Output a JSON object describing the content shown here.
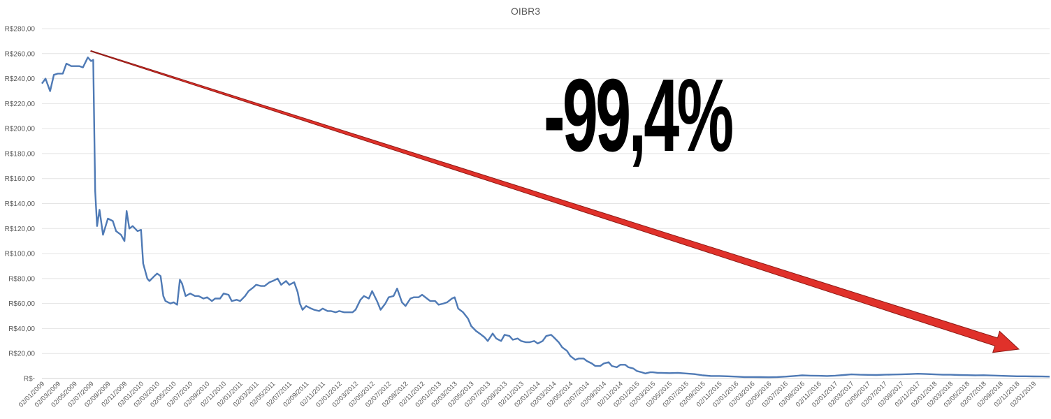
{
  "chart_data": {
    "type": "line",
    "title": "OIBR3",
    "annotation": "-99,4%",
    "xlabel": "",
    "ylabel": "",
    "ylim": [
      0,
      280
    ],
    "y_ticks": [
      {
        "value": 0,
        "label": "R$-"
      },
      {
        "value": 20,
        "label": "R$20,00"
      },
      {
        "value": 40,
        "label": "R$40,00"
      },
      {
        "value": 60,
        "label": "R$60,00"
      },
      {
        "value": 80,
        "label": "R$80,00"
      },
      {
        "value": 100,
        "label": "R$100,00"
      },
      {
        "value": 120,
        "label": "R$120,00"
      },
      {
        "value": 140,
        "label": "R$140,00"
      },
      {
        "value": 160,
        "label": "R$160,00"
      },
      {
        "value": 180,
        "label": "R$180,00"
      },
      {
        "value": 200,
        "label": "R$200,00"
      },
      {
        "value": 220,
        "label": "R$220,00"
      },
      {
        "value": 240,
        "label": "R$240,00"
      },
      {
        "value": 260,
        "label": "R$260,00"
      },
      {
        "value": 280,
        "label": "R$280,00"
      }
    ],
    "x_tick_labels": [
      "02/01/2009",
      "02/03/2009",
      "02/05/2009",
      "02/07/2009",
      "02/09/2009",
      "02/11/2009",
      "02/01/2010",
      "02/03/2010",
      "02/05/2010",
      "02/07/2010",
      "02/09/2010",
      "02/11/2010",
      "02/01/2011",
      "02/03/2011",
      "02/05/2011",
      "02/07/2011",
      "02/09/2011",
      "02/11/2011",
      "02/01/2012",
      "02/03/2012",
      "02/05/2012",
      "02/07/2012",
      "02/09/2012",
      "02/11/2012",
      "02/01/2013",
      "02/03/2013",
      "02/05/2013",
      "02/07/2013",
      "02/09/2013",
      "02/11/2013",
      "02/01/2014",
      "02/03/2014",
      "02/05/2014",
      "02/07/2014",
      "02/09/2014",
      "02/11/2014",
      "02/01/2015",
      "02/03/2015",
      "02/05/2015",
      "02/07/2015",
      "02/09/2015",
      "02/11/2015",
      "02/01/2016",
      "02/03/2016",
      "02/05/2016",
      "02/07/2016",
      "02/09/2016",
      "02/11/2016",
      "02/01/2017",
      "02/03/2017",
      "02/05/2017",
      "02/07/2017",
      "02/09/2017",
      "02/11/2017",
      "02/01/2018",
      "02/03/2018",
      "02/05/2018",
      "02/07/2018",
      "02/09/2018",
      "02/11/2018",
      "02/01/2019"
    ],
    "series": [
      {
        "color": "#4f7ab5",
        "points": [
          [
            "02/01/2009",
            236
          ],
          [
            "15/01/2009",
            240
          ],
          [
            "01/02/2009",
            230
          ],
          [
            "15/02/2009",
            243
          ],
          [
            "02/03/2009",
            244
          ],
          [
            "20/03/2009",
            244
          ],
          [
            "02/04/2009",
            252
          ],
          [
            "20/04/2009",
            250
          ],
          [
            "02/05/2009",
            250
          ],
          [
            "20/05/2009",
            250
          ],
          [
            "02/06/2009",
            249
          ],
          [
            "20/06/2009",
            257
          ],
          [
            "02/07/2009",
            254
          ],
          [
            "10/07/2009",
            255
          ],
          [
            "17/07/2009",
            150
          ],
          [
            "24/07/2009",
            122
          ],
          [
            "02/08/2009",
            135
          ],
          [
            "15/08/2009",
            115
          ],
          [
            "02/09/2009",
            128
          ],
          [
            "20/09/2009",
            126
          ],
          [
            "02/10/2009",
            118
          ],
          [
            "20/10/2009",
            115
          ],
          [
            "02/11/2009",
            110
          ],
          [
            "10/11/2009",
            134
          ],
          [
            "20/11/2009",
            120
          ],
          [
            "02/12/2009",
            122
          ],
          [
            "20/12/2009",
            118
          ],
          [
            "02/01/2010",
            119
          ],
          [
            "10/01/2010",
            92
          ],
          [
            "25/01/2010",
            80
          ],
          [
            "02/02/2010",
            78
          ],
          [
            "20/02/2010",
            82
          ],
          [
            "02/03/2010",
            84
          ],
          [
            "15/03/2010",
            82
          ],
          [
            "25/03/2010",
            66
          ],
          [
            "02/04/2010",
            62
          ],
          [
            "20/04/2010",
            60
          ],
          [
            "02/05/2010",
            61
          ],
          [
            "15/05/2010",
            59
          ],
          [
            "25/05/2010",
            79
          ],
          [
            "02/06/2010",
            76
          ],
          [
            "15/06/2010",
            66
          ],
          [
            "02/07/2010",
            68
          ],
          [
            "20/07/2010",
            66
          ],
          [
            "02/08/2010",
            66
          ],
          [
            "20/08/2010",
            64
          ],
          [
            "02/09/2010",
            65
          ],
          [
            "20/09/2010",
            62
          ],
          [
            "02/10/2010",
            64
          ],
          [
            "20/10/2010",
            64
          ],
          [
            "02/11/2010",
            68
          ],
          [
            "20/11/2010",
            67
          ],
          [
            "02/12/2010",
            62
          ],
          [
            "20/12/2010",
            63
          ],
          [
            "02/01/2011",
            62
          ],
          [
            "20/01/2011",
            66
          ],
          [
            "02/02/2011",
            70
          ],
          [
            "20/02/2011",
            73
          ],
          [
            "02/03/2011",
            75
          ],
          [
            "20/03/2011",
            74
          ],
          [
            "02/04/2011",
            74
          ],
          [
            "20/04/2011",
            77
          ],
          [
            "02/05/2011",
            78
          ],
          [
            "20/05/2011",
            80
          ],
          [
            "02/06/2011",
            75
          ],
          [
            "20/06/2011",
            78
          ],
          [
            "02/07/2011",
            75
          ],
          [
            "20/07/2011",
            77
          ],
          [
            "02/08/2011",
            69
          ],
          [
            "10/08/2011",
            60
          ],
          [
            "20/08/2011",
            55
          ],
          [
            "02/09/2011",
            58
          ],
          [
            "20/09/2011",
            56
          ],
          [
            "02/10/2011",
            55
          ],
          [
            "20/10/2011",
            54
          ],
          [
            "02/11/2011",
            56
          ],
          [
            "20/11/2011",
            54
          ],
          [
            "02/12/2011",
            54
          ],
          [
            "20/12/2011",
            53
          ],
          [
            "02/01/2012",
            54
          ],
          [
            "20/01/2012",
            53
          ],
          [
            "02/02/2012",
            53
          ],
          [
            "20/02/2012",
            53
          ],
          [
            "02/03/2012",
            55
          ],
          [
            "20/03/2012",
            63
          ],
          [
            "02/04/2012",
            66
          ],
          [
            "20/04/2012",
            64
          ],
          [
            "02/05/2012",
            70
          ],
          [
            "20/05/2012",
            62
          ],
          [
            "02/06/2012",
            55
          ],
          [
            "20/06/2012",
            60
          ],
          [
            "02/07/2012",
            65
          ],
          [
            "20/07/2012",
            66
          ],
          [
            "02/08/2012",
            72
          ],
          [
            "20/08/2012",
            61
          ],
          [
            "02/09/2012",
            58
          ],
          [
            "20/09/2012",
            64
          ],
          [
            "02/10/2012",
            65
          ],
          [
            "20/10/2012",
            65
          ],
          [
            "02/11/2012",
            67
          ],
          [
            "20/11/2012",
            64
          ],
          [
            "02/12/2012",
            62
          ],
          [
            "20/12/2012",
            62
          ],
          [
            "02/01/2013",
            59
          ],
          [
            "20/01/2013",
            60
          ],
          [
            "02/02/2013",
            61
          ],
          [
            "20/02/2013",
            64
          ],
          [
            "02/03/2013",
            65
          ],
          [
            "15/03/2013",
            56
          ],
          [
            "02/04/2013",
            53
          ],
          [
            "20/04/2013",
            48
          ],
          [
            "02/05/2013",
            42
          ],
          [
            "20/05/2013",
            38
          ],
          [
            "02/06/2013",
            36
          ],
          [
            "20/06/2013",
            33
          ],
          [
            "02/07/2013",
            30
          ],
          [
            "20/07/2013",
            36
          ],
          [
            "02/08/2013",
            32
          ],
          [
            "20/08/2013",
            30
          ],
          [
            "02/09/2013",
            35
          ],
          [
            "20/09/2013",
            34
          ],
          [
            "02/10/2013",
            31
          ],
          [
            "20/10/2013",
            32
          ],
          [
            "02/11/2013",
            30
          ],
          [
            "20/11/2013",
            29
          ],
          [
            "02/12/2013",
            29
          ],
          [
            "20/12/2013",
            30
          ],
          [
            "02/01/2014",
            28
          ],
          [
            "20/01/2014",
            30
          ],
          [
            "02/02/2014",
            34
          ],
          [
            "20/02/2014",
            35
          ],
          [
            "02/03/2014",
            33
          ],
          [
            "20/03/2014",
            29
          ],
          [
            "02/04/2014",
            25
          ],
          [
            "20/04/2014",
            22
          ],
          [
            "02/05/2014",
            18
          ],
          [
            "20/05/2014",
            15
          ],
          [
            "02/06/2014",
            16
          ],
          [
            "20/06/2014",
            16
          ],
          [
            "02/07/2014",
            14
          ],
          [
            "20/07/2014",
            12
          ],
          [
            "02/08/2014",
            10
          ],
          [
            "20/08/2014",
            10
          ],
          [
            "02/09/2014",
            12
          ],
          [
            "20/09/2014",
            13
          ],
          [
            "02/10/2014",
            10
          ],
          [
            "20/10/2014",
            9
          ],
          [
            "02/11/2014",
            11
          ],
          [
            "20/11/2014",
            11
          ],
          [
            "02/12/2014",
            9
          ],
          [
            "20/12/2014",
            8
          ],
          [
            "02/01/2015",
            6
          ],
          [
            "20/01/2015",
            5
          ],
          [
            "02/02/2015",
            4
          ],
          [
            "20/02/2015",
            5
          ],
          [
            "02/03/2015",
            5
          ],
          [
            "20/03/2015",
            4.5
          ],
          [
            "02/04/2015",
            4.5
          ],
          [
            "02/05/2015",
            4.3
          ],
          [
            "02/06/2015",
            4.5
          ],
          [
            "02/07/2015",
            4
          ],
          [
            "02/08/2015",
            3.5
          ],
          [
            "02/09/2015",
            2.5
          ],
          [
            "02/10/2015",
            2
          ],
          [
            "02/11/2015",
            2
          ],
          [
            "02/12/2015",
            1.8
          ],
          [
            "02/01/2016",
            1.5
          ],
          [
            "02/02/2016",
            1.2
          ],
          [
            "02/03/2016",
            1.2
          ],
          [
            "02/04/2016",
            1.1
          ],
          [
            "02/05/2016",
            1.0
          ],
          [
            "02/06/2016",
            1.2
          ],
          [
            "02/07/2016",
            1.5
          ],
          [
            "02/08/2016",
            2
          ],
          [
            "02/09/2016",
            2.5
          ],
          [
            "02/10/2016",
            2.3
          ],
          [
            "02/11/2016",
            2.2
          ],
          [
            "02/12/2016",
            2.0
          ],
          [
            "02/01/2017",
            2.3
          ],
          [
            "02/02/2017",
            2.8
          ],
          [
            "02/03/2017",
            3.3
          ],
          [
            "02/04/2017",
            3.0
          ],
          [
            "02/05/2017",
            2.9
          ],
          [
            "02/06/2017",
            2.8
          ],
          [
            "02/07/2017",
            3.0
          ],
          [
            "02/08/2017",
            3.2
          ],
          [
            "02/09/2017",
            3.3
          ],
          [
            "02/10/2017",
            3.5
          ],
          [
            "02/11/2017",
            3.8
          ],
          [
            "02/12/2017",
            3.6
          ],
          [
            "02/01/2018",
            3.3
          ],
          [
            "02/02/2018",
            3.0
          ],
          [
            "02/03/2018",
            3.0
          ],
          [
            "02/04/2018",
            2.8
          ],
          [
            "02/05/2018",
            2.7
          ],
          [
            "02/06/2018",
            2.5
          ],
          [
            "02/07/2018",
            2.6
          ],
          [
            "02/08/2018",
            2.4
          ],
          [
            "02/09/2018",
            2.2
          ],
          [
            "02/10/2018",
            2.0
          ],
          [
            "02/11/2018",
            1.8
          ],
          [
            "02/12/2018",
            1.8
          ],
          [
            "02/01/2019",
            1.7
          ],
          [
            "02/02/2019",
            1.6
          ],
          [
            "02/03/2019",
            1.5
          ]
        ]
      }
    ],
    "arrow_color": "#e0312a",
    "grid": true
  }
}
